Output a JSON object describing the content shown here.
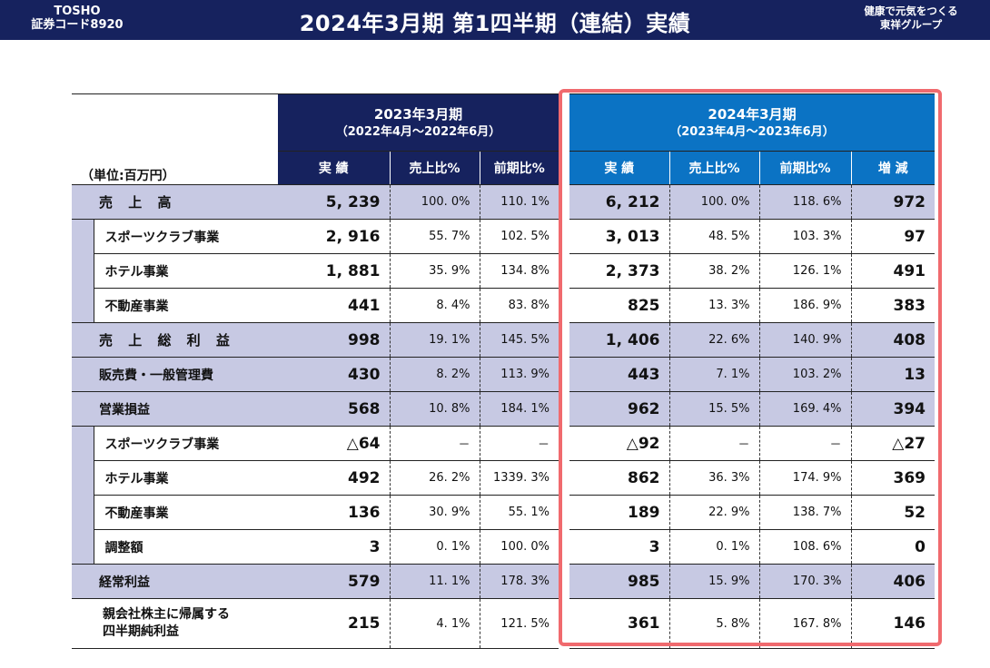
{
  "header": {
    "brand": "TOSHO",
    "code": "証券コード8920",
    "title": "2024年3月期 第1四半期（連結）実績",
    "tagline_line1": "健康で元気をつくる",
    "tagline_line2": "東祥グループ"
  },
  "table": {
    "unit": "（単位:百万円）",
    "periods": [
      {
        "label": "2023年3月期",
        "range": "（2022年4月～2022年6月）"
      },
      {
        "label": "2024年3月期",
        "range": "（2023年4月～2023年6月）"
      }
    ],
    "subheaders": [
      "実 績",
      "売上比%",
      "前期比%",
      "実 績",
      "売上比%",
      "前期比%",
      "増 減"
    ],
    "rows": [
      {
        "label": "売 上 高",
        "values": [
          "5, 239",
          "100. 0%",
          "110. 1%",
          "6, 212",
          "100. 0%",
          "118. 6%",
          "972"
        ]
      },
      {
        "label": "スポーツクラブ事業",
        "values": [
          "2, 916",
          "55. 7%",
          "102. 5%",
          "3, 013",
          "48. 5%",
          "103. 3%",
          "97"
        ]
      },
      {
        "label": "ホテル事業",
        "values": [
          "1, 881",
          "35. 9%",
          "134. 8%",
          "2, 373",
          "38. 2%",
          "126. 1%",
          "491"
        ]
      },
      {
        "label": "不動産事業",
        "values": [
          "441",
          "8. 4%",
          "83. 8%",
          "825",
          "13. 3%",
          "186. 9%",
          "383"
        ]
      },
      {
        "label": "売 上 総 利 益",
        "values": [
          "998",
          "19. 1%",
          "145. 5%",
          "1, 406",
          "22. 6%",
          "140. 9%",
          "408"
        ]
      },
      {
        "label": "販売費・一般管理費",
        "values": [
          "430",
          "8. 2%",
          "113. 9%",
          "443",
          "7. 1%",
          "103. 2%",
          "13"
        ]
      },
      {
        "label": "営業損益",
        "values": [
          "568",
          "10. 8%",
          "184. 1%",
          "962",
          "15. 5%",
          "169. 4%",
          "394"
        ]
      },
      {
        "label": "スポーツクラブ事業",
        "values": [
          "△64",
          "－",
          "－",
          "△92",
          "－",
          "－",
          "△27"
        ]
      },
      {
        "label": "ホテル事業",
        "values": [
          "492",
          "26. 2%",
          "1339. 3%",
          "862",
          "36. 3%",
          "174. 9%",
          "369"
        ]
      },
      {
        "label": "不動産事業",
        "values": [
          "136",
          "30. 9%",
          "55. 1%",
          "189",
          "22. 9%",
          "138. 7%",
          "52"
        ]
      },
      {
        "label": "調整額",
        "values": [
          "3",
          "0. 1%",
          "100. 0%",
          "3",
          "0. 1%",
          "108. 6%",
          "0"
        ]
      },
      {
        "label": "経常利益",
        "values": [
          "579",
          "11. 1%",
          "178. 3%",
          "985",
          "15. 9%",
          "170. 3%",
          "406"
        ]
      },
      {
        "label_line1": "親会社株主に帰属する",
        "label_line2": "四半期純利益",
        "values": [
          "215",
          "4. 1%",
          "121. 5%",
          "361",
          "5. 8%",
          "167. 8%",
          "146"
        ]
      }
    ]
  },
  "colors": {
    "navy": "#16225e",
    "blue": "#0b73c4",
    "shade": "#c7c9e3",
    "highlight": "#f06a6e"
  }
}
